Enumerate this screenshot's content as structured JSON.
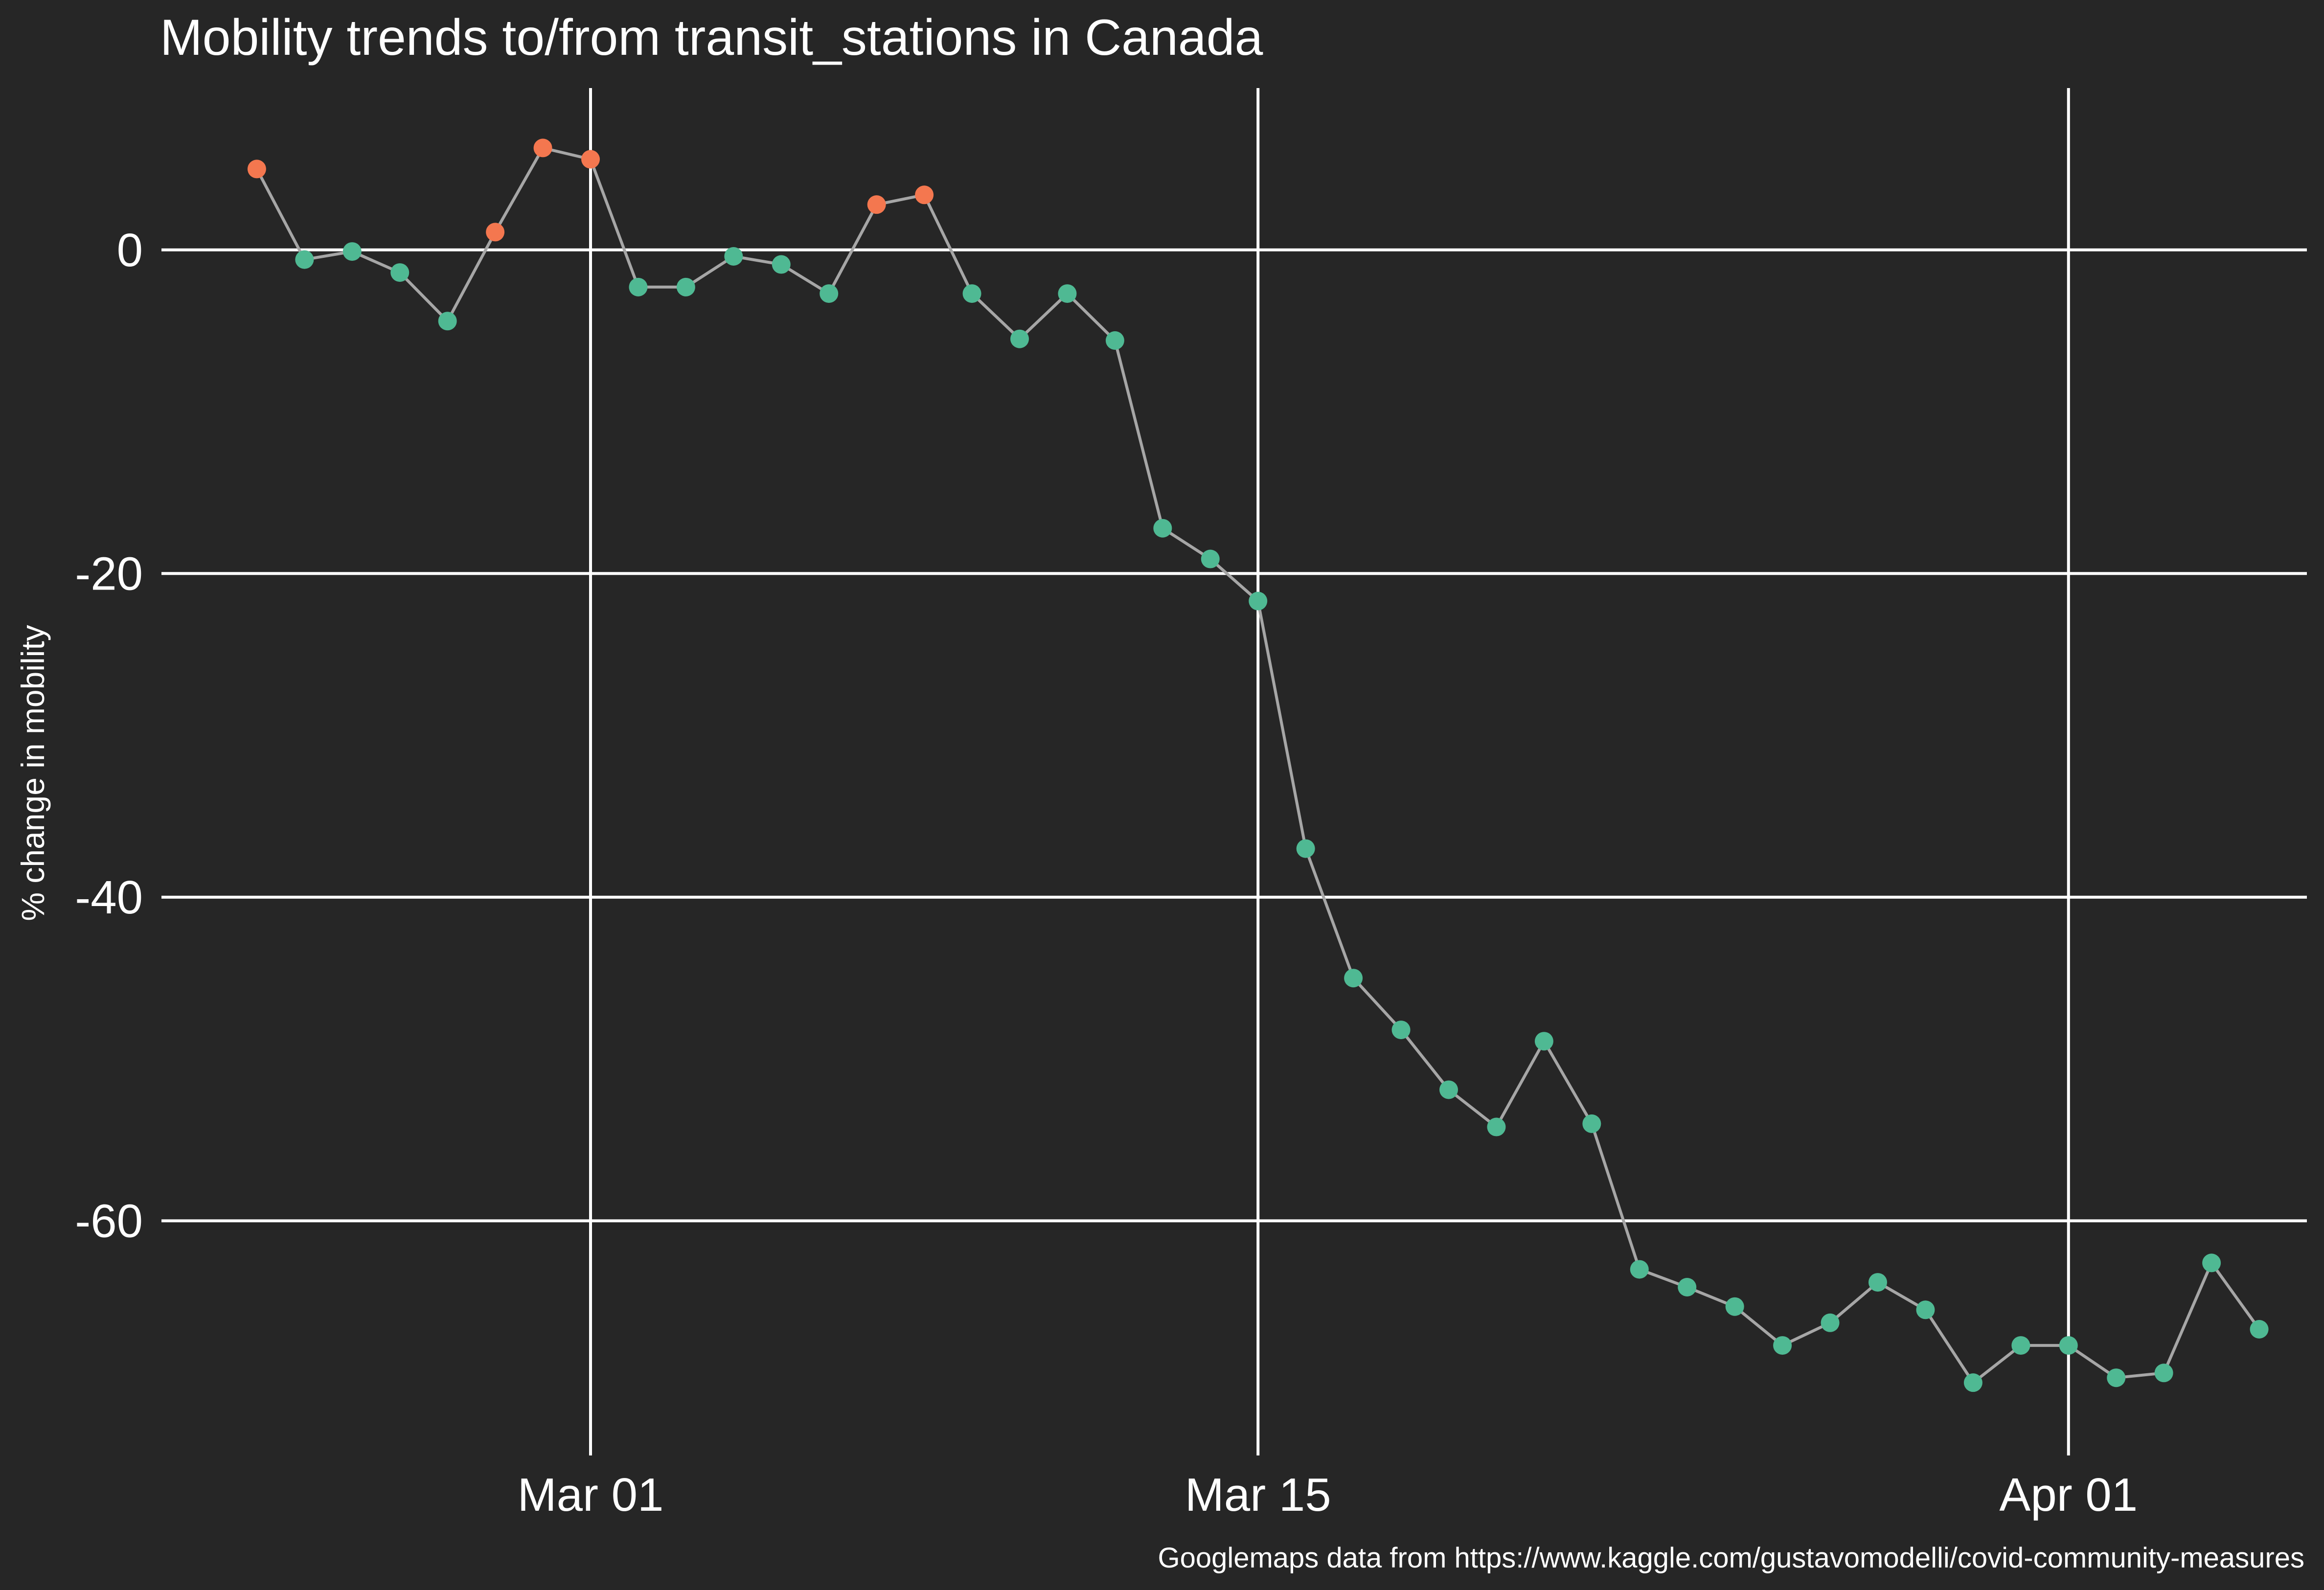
{
  "chart_data": {
    "type": "line",
    "title": "Mobility trends to/from transit_stations in Canada",
    "xlabel": "",
    "ylabel": "% change in mobility",
    "caption": "Googlemaps data from https://www.kaggle.com/gustavomodelli/covid-community-measures",
    "x_ticks": [
      {
        "date": "2020-03-01",
        "label": "Mar 01"
      },
      {
        "date": "2020-03-15",
        "label": "Mar 15"
      },
      {
        "date": "2020-04-01",
        "label": "Apr 01"
      }
    ],
    "y_ticks": [
      0,
      -20,
      -40,
      -60
    ],
    "xlim": [
      "2020-02-21",
      "2020-04-06"
    ],
    "ylim": [
      -74.5,
      10
    ],
    "grid": true,
    "colors": {
      "background": "#262626",
      "line": "#a6a6a6",
      "positive_point": "#f4774f",
      "negative_point": "#4fb993",
      "grid": "#ffffff",
      "text": "#ffffff"
    },
    "series": [
      {
        "points": [
          {
            "date": "2020-02-23",
            "value": 5
          },
          {
            "date": "2020-02-24",
            "value": -0.6
          },
          {
            "date": "2020-02-25",
            "value": -0.1
          },
          {
            "date": "2020-02-26",
            "value": -1.4
          },
          {
            "date": "2020-02-27",
            "value": -4.4
          },
          {
            "date": "2020-02-28",
            "value": 1.1
          },
          {
            "date": "2020-02-29",
            "value": 6.3
          },
          {
            "date": "2020-03-01",
            "value": 5.6
          },
          {
            "date": "2020-03-02",
            "value": -2.3
          },
          {
            "date": "2020-03-03",
            "value": -2.3
          },
          {
            "date": "2020-03-04",
            "value": -0.4
          },
          {
            "date": "2020-03-05",
            "value": -0.9
          },
          {
            "date": "2020-03-06",
            "value": -2.7
          },
          {
            "date": "2020-03-07",
            "value": 2.8
          },
          {
            "date": "2020-03-08",
            "value": 3.4
          },
          {
            "date": "2020-03-09",
            "value": -2.7
          },
          {
            "date": "2020-03-10",
            "value": -5.5
          },
          {
            "date": "2020-03-11",
            "value": -2.7
          },
          {
            "date": "2020-03-12",
            "value": -5.6
          },
          {
            "date": "2020-03-13",
            "value": -17.2
          },
          {
            "date": "2020-03-14",
            "value": -19.1
          },
          {
            "date": "2020-03-15",
            "value": -21.7
          },
          {
            "date": "2020-03-16",
            "value": -37
          },
          {
            "date": "2020-03-17",
            "value": -45
          },
          {
            "date": "2020-03-18",
            "value": -48.2
          },
          {
            "date": "2020-03-19",
            "value": -51.9
          },
          {
            "date": "2020-03-20",
            "value": -54.2
          },
          {
            "date": "2020-03-21",
            "value": -48.9
          },
          {
            "date": "2020-03-22",
            "value": -54
          },
          {
            "date": "2020-03-23",
            "value": -63
          },
          {
            "date": "2020-03-24",
            "value": -64.1
          },
          {
            "date": "2020-03-25",
            "value": -65.3
          },
          {
            "date": "2020-03-26",
            "value": -67.7
          },
          {
            "date": "2020-03-27",
            "value": -66.3
          },
          {
            "date": "2020-03-28",
            "value": -63.8
          },
          {
            "date": "2020-03-29",
            "value": -65.5
          },
          {
            "date": "2020-03-30",
            "value": -70
          },
          {
            "date": "2020-03-31",
            "value": -67.7
          },
          {
            "date": "2020-04-01",
            "value": -67.7
          },
          {
            "date": "2020-04-02",
            "value": -69.7
          },
          {
            "date": "2020-04-03",
            "value": -69.4
          },
          {
            "date": "2020-04-04",
            "value": -62.6
          },
          {
            "date": "2020-04-05",
            "value": -66.7
          }
        ]
      }
    ]
  }
}
